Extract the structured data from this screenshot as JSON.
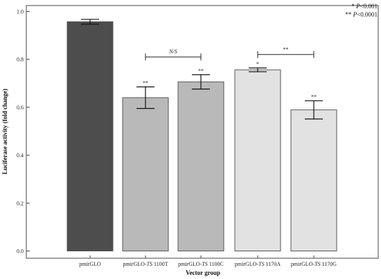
{
  "chart_data": {
    "type": "bar",
    "xlabel": "Vector group",
    "ylabel": "Luciferase activity (fold change)",
    "ylim": [
      0.0,
      1.0
    ],
    "yticks": [
      "0.0",
      "0.2",
      "0.4",
      "0.6",
      "0.8",
      "1.0"
    ],
    "grid": false,
    "categories": [
      {
        "prefix": "pmirGLO",
        "italic": "",
        "suffix": ""
      },
      {
        "prefix": "pmirGLO-",
        "italic": "TS",
        "suffix": " 1100T"
      },
      {
        "prefix": "pmirGLO-",
        "italic": "TS",
        "suffix": " 1100C"
      },
      {
        "prefix": "pmirGLO-",
        "italic": "TS",
        "suffix": " 1170A"
      },
      {
        "prefix": "pmirGLO-",
        "italic": "TS",
        "suffix": " 1170G"
      }
    ],
    "values": [
      0.957,
      0.64,
      0.706,
      0.756,
      0.589
    ],
    "errors": [
      0.01,
      0.045,
      0.03,
      0.008,
      0.038
    ],
    "bar_colors": [
      "#4d4d4d",
      "#b9b9b9",
      "#b9b9b9",
      "#e2e2e2",
      "#e2e2e2"
    ],
    "significance": [
      "",
      "**",
      "**",
      "*",
      "**"
    ],
    "comparisons": [
      {
        "from": 1,
        "to": 2,
        "label": "N/S",
        "label_italic": true,
        "y": 0.81
      },
      {
        "from": 3,
        "to": 4,
        "label": "**",
        "label_italic": false,
        "y": 0.82
      }
    ],
    "legend": {
      "position": "top-right",
      "lines": [
        {
          "stars": "* ",
          "p": "P",
          "rest": "<0.001"
        },
        {
          "stars": "** ",
          "p": "P",
          "rest": "<0.0001"
        }
      ]
    }
  }
}
